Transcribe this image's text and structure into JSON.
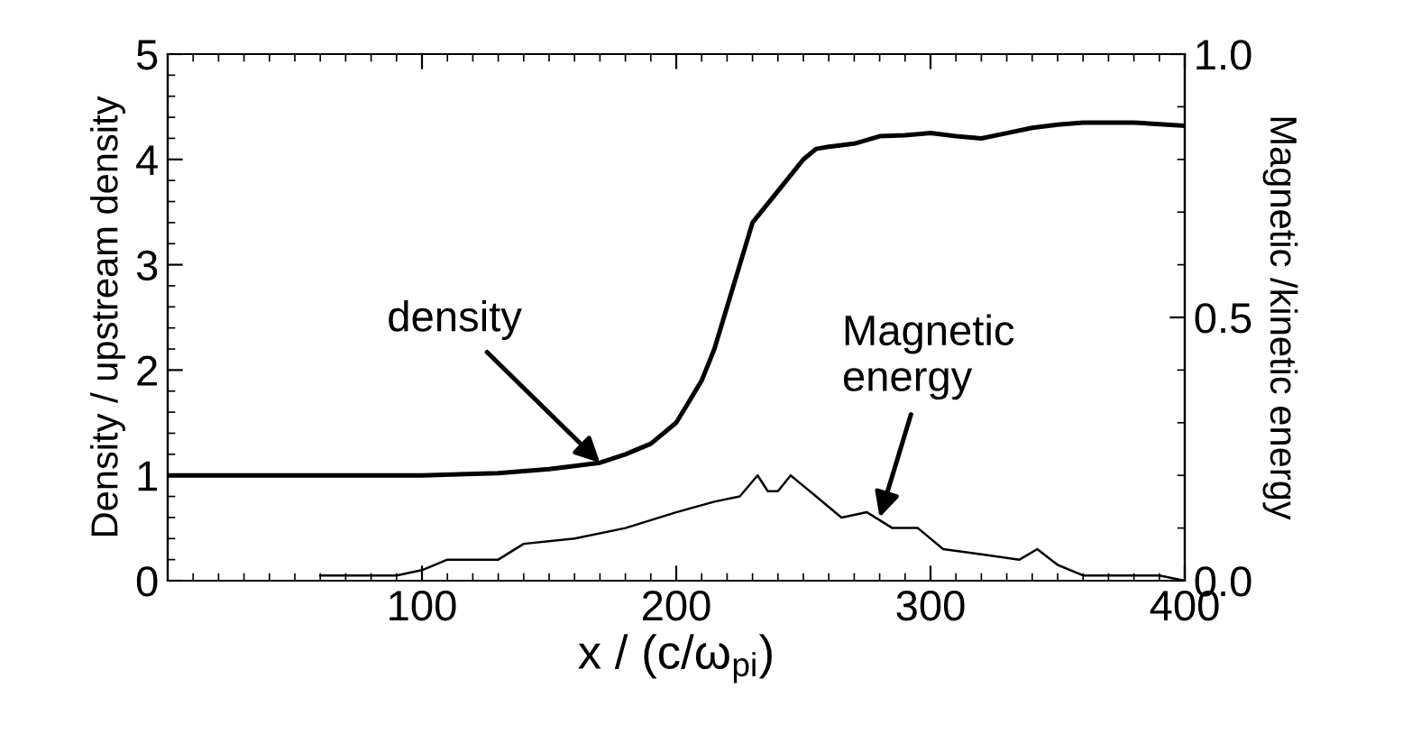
{
  "chart_data": {
    "type": "line",
    "xlabel": "x / (c/ω$_{pi}$)",
    "ylabel": "Density / upstream density",
    "y2label": "Magnetic /kinetic energy",
    "xlim": [
      0,
      400
    ],
    "xticks": [
      100,
      200,
      300,
      400
    ],
    "ylim": [
      0,
      5
    ],
    "yticks": [
      0,
      1,
      2,
      3,
      4,
      5
    ],
    "y2lim": [
      0,
      1.0
    ],
    "y2ticks": [
      {
        "value": 0,
        "label": "0.0"
      },
      0.5,
      {
        "value": 1,
        "label": "1.0"
      }
    ],
    "series": [
      {
        "color": "#000000",
        "x": [
          0,
          50,
          100,
          130,
          150,
          170,
          180,
          190,
          200,
          205,
          210,
          215,
          220,
          225,
          230,
          235,
          240,
          245,
          250,
          255,
          260,
          270,
          280,
          290,
          300,
          310,
          320,
          330,
          340,
          350,
          360,
          380,
          400
        ],
        "values": [
          1,
          1,
          1,
          1.02,
          1.06,
          1.12,
          1.2,
          1.3,
          1.5,
          1.7,
          1.9,
          2.2,
          2.6,
          3.0,
          3.4,
          3.55,
          3.7,
          3.85,
          4.0,
          4.1,
          4.12,
          4.15,
          4.22,
          4.23,
          4.25,
          4.22,
          4.2,
          4.25,
          4.3,
          4.33,
          4.35,
          4.35,
          4.32
        ]
      },
      {
        "color": "#000000",
        "axis": "y2",
        "x": [
          60,
          90,
          100,
          110,
          130,
          140,
          160,
          180,
          200,
          215,
          225,
          232,
          236,
          240,
          245,
          250,
          255,
          265,
          275,
          285,
          295,
          305,
          320,
          335,
          342,
          350,
          360,
          390,
          400
        ],
        "values": [
          0.01,
          0.01,
          0.02,
          0.04,
          0.04,
          0.07,
          0.08,
          0.1,
          0.13,
          0.15,
          0.16,
          0.2,
          0.17,
          0.17,
          0.2,
          0.18,
          0.16,
          0.12,
          0.13,
          0.1,
          0.1,
          0.06,
          0.05,
          0.04,
          0.06,
          0.03,
          0.01,
          0.01,
          0.0
        ]
      }
    ],
    "annotations": [
      {
        "text": "density",
        "x": 170,
        "y": 1.12
      },
      {
        "text": "Magnetic\nenergy",
        "x": 280,
        "y": 0.6
      }
    ],
    "grid": false,
    "legend": false,
    "marker": "none",
    "line_style": "solid"
  }
}
